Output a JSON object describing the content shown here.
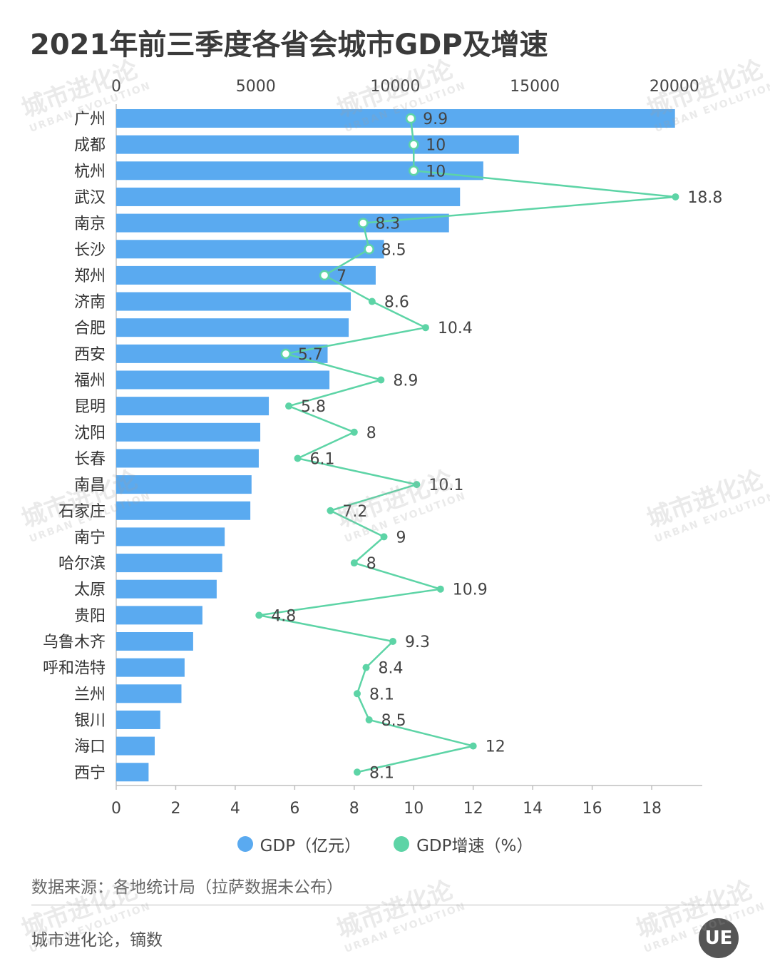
{
  "title": "2021年前三季度各省会城市GDP及增速",
  "chart_data": {
    "type": "bar",
    "orientation": "horizontal",
    "categories": [
      "广州",
      "成都",
      "杭州",
      "武汉",
      "南京",
      "长沙",
      "郑州",
      "济南",
      "合肥",
      "西安",
      "福州",
      "昆明",
      "沈阳",
      "长春",
      "南昌",
      "石家庄",
      "南宁",
      "哈尔滨",
      "太原",
      "贵阳",
      "乌鲁木齐",
      "呼和浩特",
      "兰州",
      "银川",
      "海口",
      "西宁"
    ],
    "series": [
      {
        "name": "GDP（亿元）",
        "type": "bar",
        "axis": "top",
        "values": [
          20022,
          14429,
          13154,
          12320,
          11924,
          9594,
          9298,
          8406,
          8330,
          7575,
          7641,
          5469,
          5162,
          5108,
          4849,
          4806,
          3887,
          3799,
          3600,
          3089,
          2757,
          2450,
          2337,
          1580,
          1380,
          1160
        ]
      },
      {
        "name": "GDP增速（%）",
        "type": "line",
        "axis": "bottom",
        "values": [
          9.9,
          10,
          10,
          18.8,
          8.3,
          8.5,
          7,
          8.6,
          10.4,
          5.7,
          8.9,
          5.8,
          8,
          6.1,
          10.1,
          7.2,
          9,
          8,
          10.9,
          4.8,
          9.3,
          8.4,
          8.1,
          8.5,
          12,
          8.1
        ]
      }
    ],
    "top_axis": {
      "ticks": [
        "0",
        "5000",
        "10000",
        "15000",
        "20000"
      ],
      "range": [
        0,
        21000
      ]
    },
    "bottom_axis": {
      "ticks": [
        "0",
        "2",
        "4",
        "6",
        "8",
        "10",
        "12",
        "14",
        "16",
        "18"
      ],
      "range": [
        0,
        19.7
      ]
    },
    "colors": {
      "bar": "#5aaaf0",
      "line": "#5dd4a6",
      "axis": "#bfbfbf"
    },
    "grid": false,
    "legend_position": "bottom"
  },
  "legend": [
    {
      "label": "GDP（亿元）",
      "color": "#5aaaf0"
    },
    {
      "label": "GDP增速（%）",
      "color": "#5dd4a6"
    }
  ],
  "source": "数据来源：各地统计局（拉萨数据未公布）",
  "author": "城市进化论，镝数",
  "logo_text": "UE",
  "watermark": {
    "cn": "城市进化论",
    "en": "URBAN EVOLUTION"
  }
}
